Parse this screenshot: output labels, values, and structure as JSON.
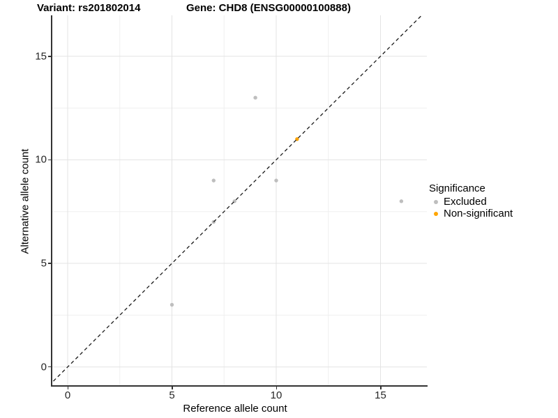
{
  "title": {
    "variant": "Variant: rs201802014",
    "gene": "Gene: CHD8 (ENSG00000100888)"
  },
  "chart_data": {
    "type": "scatter",
    "title": "Variant: rs201802014  /  Gene: CHD8 (ENSG00000100888)",
    "xlabel": "Reference allele count",
    "ylabel": "Alternative allele count",
    "xlim": [
      -0.9,
      17.2
    ],
    "ylim": [
      -0.9,
      17.1
    ],
    "major_ticks": [
      0,
      5,
      10,
      15
    ],
    "minor_ticks": [
      2.5,
      7.5,
      12.5
    ],
    "x_tick_labels": [
      "0",
      "5",
      "10",
      "15"
    ],
    "y_tick_labels": [
      "0",
      "5",
      "10",
      "15"
    ],
    "grid": "on (major + minor, light gray)",
    "identity_line": {
      "type": "abline",
      "slope": 1,
      "intercept": 0,
      "style": "dashed",
      "color": "#1a1a1a"
    },
    "series": [
      {
        "name": "Excluded",
        "color": "#BEBEBE",
        "points": [
          [
            5,
            3
          ],
          [
            7,
            7
          ],
          [
            7,
            9
          ],
          [
            8,
            8
          ],
          [
            9,
            13
          ],
          [
            10,
            9
          ],
          [
            16,
            8
          ]
        ]
      },
      {
        "name": "Non-significant",
        "color": "#FFA500",
        "points": [
          [
            11,
            11
          ]
        ]
      }
    ],
    "legend_position": "right"
  },
  "legend": {
    "title": "Significance",
    "items": [
      {
        "label": "Excluded",
        "color": "#BEBEBE"
      },
      {
        "label": "Non-significant",
        "color": "#FFA500"
      }
    ]
  },
  "colors": {
    "background": "#FFFFFF",
    "grid_major": "#E3E3E3",
    "grid_minor": "#EFEFEF",
    "axis_line": "#333333",
    "tick_text": "#262626",
    "title_text": "#000000"
  }
}
